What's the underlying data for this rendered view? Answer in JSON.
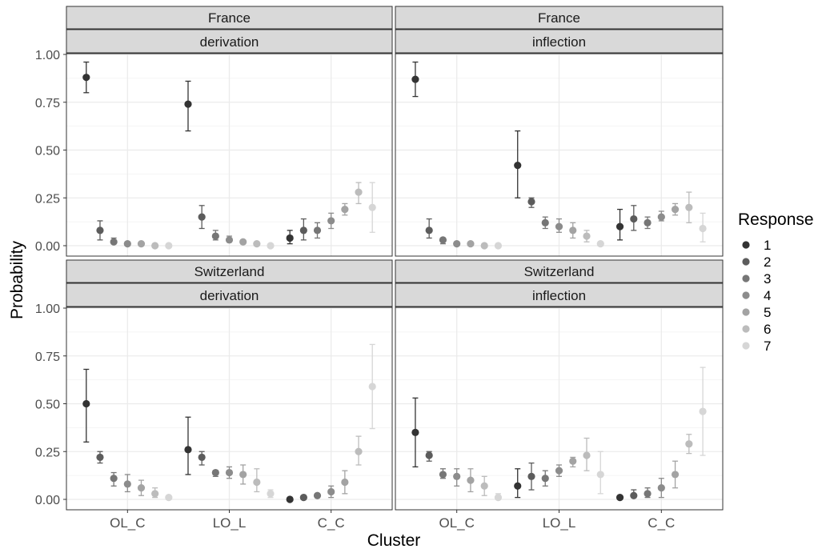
{
  "chart_data": {
    "type": "scatter",
    "subtype": "point-range (point estimate with error bars), faceted 2x2",
    "xlabel": "Cluster",
    "ylabel": "Probability",
    "ylim": [
      0,
      1
    ],
    "y_ticks": [
      "0.00",
      "0.25",
      "0.50",
      "0.75",
      "1.00"
    ],
    "categories": [
      "OL_C",
      "LO_L",
      "C_C"
    ],
    "legend": {
      "title": "Response",
      "placement": "right",
      "entries": [
        "1",
        "2",
        "3",
        "4",
        "5",
        "6",
        "7"
      ],
      "colors": [
        "#333333",
        "#5c5c5c",
        "#767676",
        "#8c8c8c",
        "#a3a3a3",
        "#bcbcbc",
        "#d6d6d6"
      ]
    },
    "grid": true,
    "theme": "bw",
    "panels": [
      {
        "strip_top": "France",
        "strip_bottom": "derivation",
        "series": [
          {
            "response": "1",
            "values": [
              0.88,
              0.74,
              0.04
            ],
            "lower": [
              0.8,
              0.6,
              0.01
            ],
            "upper": [
              0.96,
              0.86,
              0.08
            ]
          },
          {
            "response": "2",
            "values": [
              0.08,
              0.15,
              0.08
            ],
            "lower": [
              0.03,
              0.09,
              0.03
            ],
            "upper": [
              0.13,
              0.21,
              0.14
            ]
          },
          {
            "response": "3",
            "values": [
              0.02,
              0.05,
              0.08
            ],
            "lower": [
              0.01,
              0.03,
              0.04
            ],
            "upper": [
              0.04,
              0.08,
              0.12
            ]
          },
          {
            "response": "4",
            "values": [
              0.01,
              0.03,
              0.13
            ],
            "lower": [
              0.0,
              0.02,
              0.09
            ],
            "upper": [
              0.02,
              0.05,
              0.17
            ]
          },
          {
            "response": "5",
            "values": [
              0.01,
              0.02,
              0.19
            ],
            "lower": [
              0.0,
              0.01,
              0.16
            ],
            "upper": [
              0.01,
              0.03,
              0.22
            ]
          },
          {
            "response": "6",
            "values": [
              0.0,
              0.01,
              0.28
            ],
            "lower": [
              0.0,
              0.0,
              0.22
            ],
            "upper": [
              0.0,
              0.01,
              0.33
            ]
          },
          {
            "response": "7",
            "values": [
              0.0,
              0.0,
              0.2
            ],
            "lower": [
              0.0,
              0.0,
              0.07
            ],
            "upper": [
              0.0,
              0.0,
              0.33
            ]
          }
        ]
      },
      {
        "strip_top": "France",
        "strip_bottom": "inflection",
        "series": [
          {
            "response": "1",
            "values": [
              0.87,
              0.42,
              0.1
            ],
            "lower": [
              0.78,
              0.25,
              0.03
            ],
            "upper": [
              0.96,
              0.6,
              0.19
            ]
          },
          {
            "response": "2",
            "values": [
              0.08,
              0.23,
              0.14
            ],
            "lower": [
              0.04,
              0.2,
              0.08
            ],
            "upper": [
              0.14,
              0.25,
              0.21
            ]
          },
          {
            "response": "3",
            "values": [
              0.03,
              0.12,
              0.12
            ],
            "lower": [
              0.01,
              0.09,
              0.09
            ],
            "upper": [
              0.04,
              0.15,
              0.15
            ]
          },
          {
            "response": "4",
            "values": [
              0.01,
              0.1,
              0.15
            ],
            "lower": [
              0.0,
              0.07,
              0.13
            ],
            "upper": [
              0.02,
              0.14,
              0.18
            ]
          },
          {
            "response": "5",
            "values": [
              0.01,
              0.08,
              0.19
            ],
            "lower": [
              0.0,
              0.04,
              0.16
            ],
            "upper": [
              0.01,
              0.12,
              0.22
            ]
          },
          {
            "response": "6",
            "values": [
              0.0,
              0.05,
              0.2
            ],
            "lower": [
              0.0,
              0.02,
              0.12
            ],
            "upper": [
              0.01,
              0.08,
              0.28
            ]
          },
          {
            "response": "7",
            "values": [
              0.0,
              0.01,
              0.09
            ],
            "lower": [
              0.0,
              0.0,
              0.02
            ],
            "upper": [
              0.0,
              0.01,
              0.17
            ]
          }
        ]
      },
      {
        "strip_top": "Switzerland",
        "strip_bottom": "derivation",
        "series": [
          {
            "response": "1",
            "values": [
              0.5,
              0.26,
              0.0
            ],
            "lower": [
              0.3,
              0.13,
              0.0
            ],
            "upper": [
              0.68,
              0.43,
              0.01
            ]
          },
          {
            "response": "2",
            "values": [
              0.22,
              0.22,
              0.01
            ],
            "lower": [
              0.19,
              0.18,
              0.0
            ],
            "upper": [
              0.25,
              0.25,
              0.02
            ]
          },
          {
            "response": "3",
            "values": [
              0.11,
              0.14,
              0.02
            ],
            "lower": [
              0.07,
              0.12,
              0.01
            ],
            "upper": [
              0.14,
              0.15,
              0.03
            ]
          },
          {
            "response": "4",
            "values": [
              0.08,
              0.14,
              0.04
            ],
            "lower": [
              0.04,
              0.11,
              0.01
            ],
            "upper": [
              0.13,
              0.17,
              0.07
            ]
          },
          {
            "response": "5",
            "values": [
              0.06,
              0.13,
              0.09
            ],
            "lower": [
              0.02,
              0.08,
              0.03
            ],
            "upper": [
              0.1,
              0.18,
              0.15
            ]
          },
          {
            "response": "6",
            "values": [
              0.03,
              0.09,
              0.25
            ],
            "lower": [
              0.01,
              0.04,
              0.18
            ],
            "upper": [
              0.06,
              0.16,
              0.33
            ]
          },
          {
            "response": "7",
            "values": [
              0.01,
              0.03,
              0.59
            ],
            "lower": [
              0.0,
              0.01,
              0.37
            ],
            "upper": [
              0.01,
              0.05,
              0.81
            ]
          }
        ]
      },
      {
        "strip_top": "Switzerland",
        "strip_bottom": "inflection",
        "series": [
          {
            "response": "1",
            "values": [
              0.35,
              0.07,
              0.01
            ],
            "lower": [
              0.17,
              0.01,
              0.0
            ],
            "upper": [
              0.53,
              0.16,
              0.02
            ]
          },
          {
            "response": "2",
            "values": [
              0.23,
              0.12,
              0.02
            ],
            "lower": [
              0.2,
              0.05,
              0.01
            ],
            "upper": [
              0.25,
              0.19,
              0.05
            ]
          },
          {
            "response": "3",
            "values": [
              0.13,
              0.11,
              0.03
            ],
            "lower": [
              0.11,
              0.07,
              0.01
            ],
            "upper": [
              0.16,
              0.15,
              0.06
            ]
          },
          {
            "response": "4",
            "values": [
              0.12,
              0.15,
              0.06
            ],
            "lower": [
              0.07,
              0.12,
              0.01
            ],
            "upper": [
              0.16,
              0.18,
              0.11
            ]
          },
          {
            "response": "5",
            "values": [
              0.1,
              0.2,
              0.13
            ],
            "lower": [
              0.04,
              0.17,
              0.06
            ],
            "upper": [
              0.16,
              0.22,
              0.2
            ]
          },
          {
            "response": "6",
            "values": [
              0.07,
              0.23,
              0.29
            ],
            "lower": [
              0.02,
              0.15,
              0.24
            ],
            "upper": [
              0.12,
              0.32,
              0.34
            ]
          },
          {
            "response": "7",
            "values": [
              0.01,
              0.13,
              0.46
            ],
            "lower": [
              0.0,
              0.03,
              0.23
            ],
            "upper": [
              0.03,
              0.25,
              0.69
            ]
          }
        ]
      }
    ]
  }
}
